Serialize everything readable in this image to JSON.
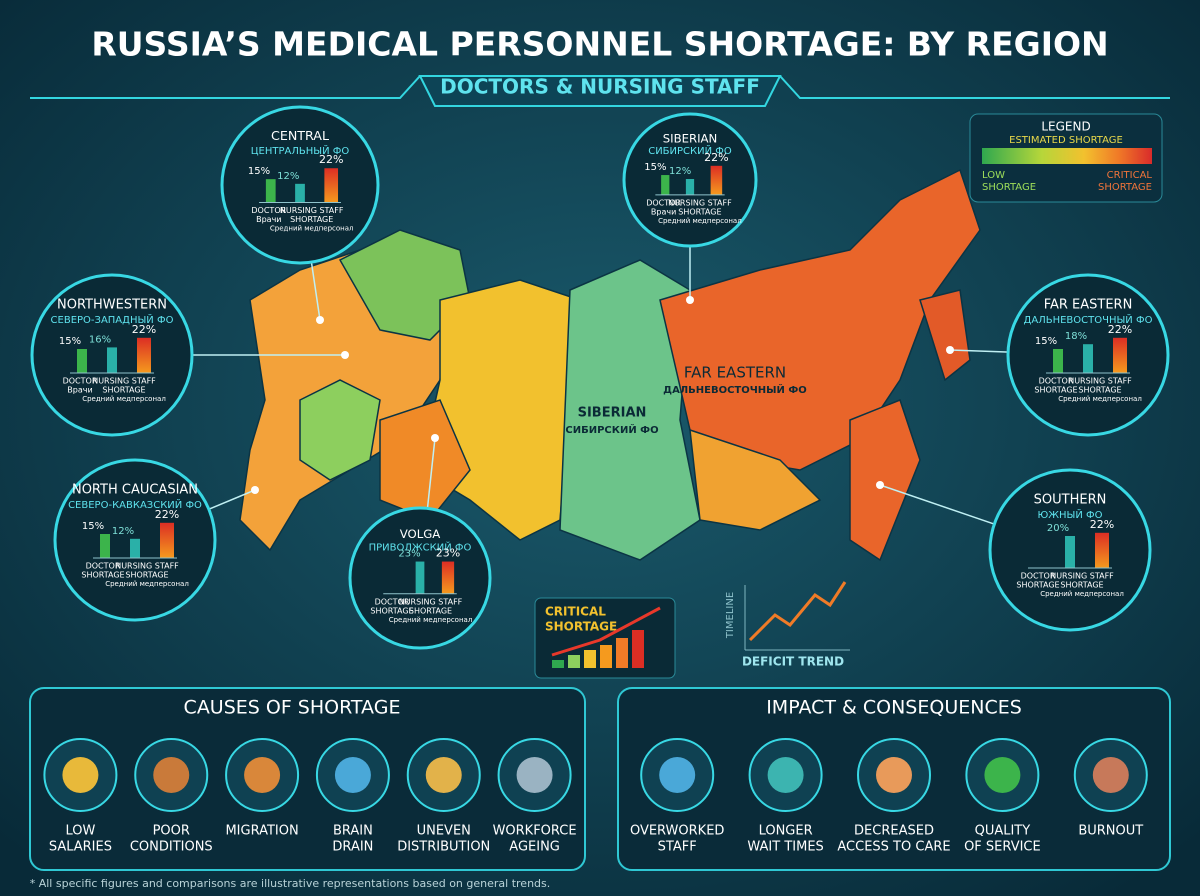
{
  "header": {
    "title": "RUSSIA’S MEDICAL PERSONNEL SHORTAGE: BY REGION",
    "subtitle": "DOCTORS & NURSING STAFF"
  },
  "legend": {
    "title": "LEGEND",
    "subtitle": "ESTIMATED SHORTAGE",
    "low": [
      "LOW",
      "SHORTAGE"
    ],
    "high": [
      "CRITICAL",
      "SHORTAGE"
    ]
  },
  "map_labels": [
    {
      "name": "SIBERIAN",
      "ru": "СИБИРСКИЙ ФО"
    },
    {
      "name": "FAR EASTERN",
      "ru": "ДАЛЬНЕВОСТОЧНЫЙ ФО"
    }
  ],
  "regions": [
    {
      "name": "CENTRAL",
      "ru": "ЦЕНТРАЛЬНЫЙ ФО",
      "bars": [
        {
          "value": 15,
          "label": "15%"
        },
        {
          "value": 12,
          "label": "12%"
        },
        {
          "value": 22,
          "label": "22%"
        }
      ],
      "doctor": [
        "DOCTOR",
        "Врачи"
      ],
      "nurse": [
        "NURSING STAFF",
        "SHORTAGE",
        "Средний медперсонал"
      ]
    },
    {
      "name": "SIBERIAN",
      "ru": "СИБИРСКИЙ ФО",
      "bars": [
        {
          "value": 15,
          "label": "15%"
        },
        {
          "value": 12,
          "label": "12%"
        },
        {
          "value": 22,
          "label": "22%"
        }
      ],
      "doctor": [
        "DOCTOR",
        "Врачи"
      ],
      "nurse": [
        "NURSING STAFF",
        "SHORTAGE",
        "Средний медперсонал"
      ]
    },
    {
      "name": "NORTHWESTERN",
      "ru": "СЕВЕРО-ЗАПАДНЫЙ ФО",
      "bars": [
        {
          "value": 15,
          "label": "15%"
        },
        {
          "value": 16,
          "label": "16%"
        },
        {
          "value": 22,
          "label": "22%"
        }
      ],
      "doctor": [
        "DOCTOR",
        "Врачи"
      ],
      "nurse": [
        "NURSING STAFF",
        "SHORTAGE",
        "Средний медперсонал"
      ]
    },
    {
      "name": "FAR EASTERN",
      "ru": "ДАЛЬНЕВОСТОЧНЫЙ ФО",
      "bars": [
        {
          "value": 15,
          "label": "15%"
        },
        {
          "value": 18,
          "label": "18%"
        },
        {
          "value": 22,
          "label": "22%"
        }
      ],
      "doctor": [
        "DOCTOR",
        "SHORTAGE"
      ],
      "nurse": [
        "NURSING STAFF",
        "SHORTAGE",
        "Средний медперсонал"
      ]
    },
    {
      "name": "NORTH CAUCASIAN",
      "ru": "СЕВЕРО-КАВКАЗСКИЙ ФО",
      "bars": [
        {
          "value": 15,
          "label": "15%"
        },
        {
          "value": 12,
          "label": "12%"
        },
        {
          "value": 22,
          "label": "22%"
        }
      ],
      "doctor": [
        "DOCTOR",
        "SHORTAGE"
      ],
      "nurse": [
        "NURSING STAFF",
        "SHORTAGE",
        "Средний медперсонал"
      ]
    },
    {
      "name": "VOLGA",
      "ru": "ПРИВОЛЖСКИЙ ФО",
      "bars": [
        {
          "value": 23,
          "label": "23%"
        },
        {
          "value": 23,
          "label": "23%"
        }
      ],
      "doctor": [
        "DOCTOR",
        "SHORTAGE"
      ],
      "nurse": [
        "NURSING STAFF",
        "SHORTAGE",
        "Средний медперсонал"
      ]
    },
    {
      "name": "SOUTHERN",
      "ru": "ЮЖНЫЙ ФО",
      "bars": [
        {
          "value": 20,
          "label": "20%"
        },
        {
          "value": 22,
          "label": "22%"
        }
      ],
      "doctor": [
        "DOCTOR",
        "SHORTAGE"
      ],
      "nurse": [
        "NURSING STAFF",
        "SHORTAGE",
        "Средний медперсонал"
      ]
    }
  ],
  "trend": {
    "critical": [
      "CRITICAL",
      "SHORTAGE"
    ],
    "axis": "TIMELINE",
    "label": "DEFICIT TREND"
  },
  "causes": {
    "title": "CAUSES OF SHORTAGE",
    "items": [
      [
        "LOW",
        "SALARIES"
      ],
      [
        "POOR",
        "CONDITIONS"
      ],
      [
        "MIGRATION"
      ],
      [
        "BRAIN",
        "DRAIN"
      ],
      [
        "UNEVEN",
        "DISTRIBUTION"
      ],
      [
        "WORKFORCE",
        "AGEING"
      ]
    ]
  },
  "impact": {
    "title": "IMPACT & CONSEQUENCES",
    "items": [
      [
        "OVERWORKED",
        "STAFF"
      ],
      [
        "LONGER",
        "WAIT TIMES"
      ],
      [
        "DECREASED",
        "ACCESS TO CARE"
      ],
      [
        "QUALITY",
        "OF SERVICE"
      ],
      [
        "BURNOUT"
      ]
    ]
  },
  "footnote": "* All specific figures and comparisons are illustrative representations based on general trends."
}
